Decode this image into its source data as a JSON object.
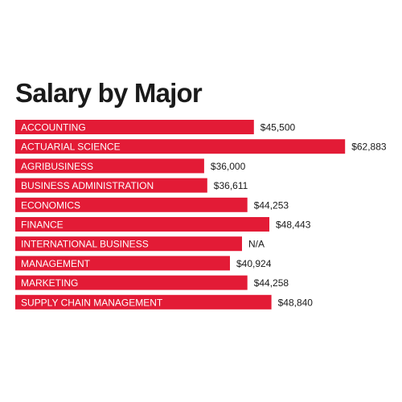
{
  "colors": {
    "bar": "#e31b36",
    "bar_label": "#ffffff",
    "value_label": "#1a1a1a",
    "background": "#ffffff"
  },
  "chart_data": {
    "type": "bar",
    "orientation": "horizontal",
    "title": "Salary by Major",
    "categories": [
      "ACCOUNTING",
      "ACTUARIAL SCIENCE",
      "AGRIBUSINESS",
      "BUSINESS ADMINISTRATION",
      "ECONOMICS",
      "FINANCE",
      "INTERNATIONAL BUSINESS",
      "MANAGEMENT",
      "MARKETING",
      "SUPPLY CHAIN MANAGEMENT"
    ],
    "values": [
      45500,
      62883,
      36000,
      36611,
      44253,
      48443,
      null,
      40924,
      44258,
      48840
    ],
    "value_labels": [
      "$45,500",
      "$62,883",
      "$36,000",
      "$36,611",
      "$44,253",
      "$48,443",
      "N/A",
      "$40,924",
      "$44,258",
      "$48,840"
    ],
    "xlim": [
      0,
      63000
    ],
    "grid": false,
    "legend": "none"
  }
}
